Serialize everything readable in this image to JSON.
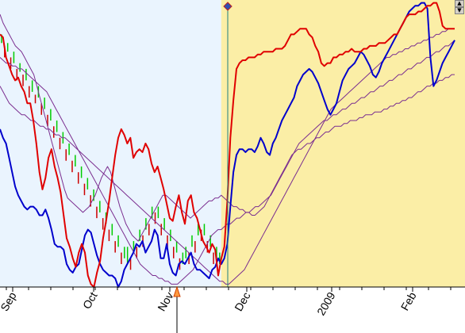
{
  "chart_data": {
    "type": "line",
    "title": "",
    "x_tick_labels": [
      "Sep",
      "Oct",
      "Nov",
      "Dec",
      "2009",
      "Feb"
    ],
    "ylim": [
      0,
      100
    ],
    "shaded_regions": [
      {
        "from": 0,
        "to": 72,
        "color": "#eaf4fe"
      },
      {
        "from": 72,
        "to": 149,
        "color": "#fbeea6"
      }
    ],
    "series": [
      {
        "color": "#e00000",
        "values": [
          88,
          87,
          80,
          77,
          74,
          72,
          73,
          70,
          68,
          64,
          64,
          58,
          50,
          40,
          34,
          38,
          45,
          48,
          42,
          38,
          33,
          25,
          17,
          14,
          10,
          7,
          12,
          15,
          12,
          4,
          1,
          0,
          5,
          9,
          17,
          23,
          30,
          38,
          46,
          52,
          55,
          53,
          50,
          52,
          45,
          47,
          48,
          47,
          50,
          48,
          43,
          40,
          42,
          38,
          34,
          29,
          24,
          23,
          28,
          32,
          26,
          22,
          30,
          32,
          26,
          24,
          20,
          16,
          14,
          12,
          15,
          13,
          4,
          10,
          14,
          30,
          52,
          65,
          76,
          78,
          79,
          79,
          80,
          80,
          80,
          81,
          81,
          82,
          82,
          82,
          82,
          83,
          83,
          83,
          84,
          86,
          88,
          88,
          89,
          90,
          90,
          90,
          88,
          87,
          84,
          82,
          78,
          77,
          78,
          78,
          80,
          80,
          81,
          81,
          82,
          82,
          83,
          82,
          82,
          82,
          83,
          83,
          84,
          84,
          84,
          85,
          85,
          85,
          86,
          87,
          88,
          88,
          90,
          92,
          94,
          95,
          95,
          95,
          96,
          96,
          97,
          98,
          98,
          99,
          99,
          96,
          91,
          90,
          90,
          90,
          90
        ]
      },
      {
        "color": "#0000cc",
        "values": [
          55,
          52,
          50,
          45,
          40,
          35,
          32,
          30,
          28,
          27,
          28,
          28,
          27,
          25,
          25,
          27,
          24,
          20,
          15,
          14,
          14,
          13,
          8,
          6,
          5,
          7,
          8,
          13,
          18,
          20,
          19,
          15,
          11,
          8,
          6,
          5,
          4,
          4,
          3,
          0,
          2,
          6,
          8,
          10,
          12,
          15,
          14,
          16,
          12,
          14,
          16,
          20,
          18,
          10,
          10,
          15,
          8,
          5,
          4,
          8,
          9,
          8,
          10,
          12,
          8,
          6,
          6,
          5,
          4,
          3,
          6,
          7,
          10,
          8,
          10,
          15,
          28,
          40,
          46,
          48,
          48,
          47,
          48,
          48,
          47,
          49,
          52,
          50,
          47,
          46,
          50,
          52,
          55,
          58,
          60,
          62,
          64,
          66,
          70,
          72,
          74,
          75,
          76,
          75,
          73,
          71,
          68,
          65,
          62,
          60,
          62,
          64,
          68,
          72,
          74,
          76,
          77,
          78,
          80,
          82,
          81,
          79,
          77,
          74,
          73,
          75,
          78,
          80,
          82,
          84,
          86,
          88,
          90,
          92,
          94,
          96,
          97,
          98,
          98,
          99,
          99,
          97,
          80,
          70,
          72,
          75,
          78,
          80,
          82,
          84,
          86
        ]
      },
      {
        "color": "#7b2e90",
        "values": [
          95,
          92,
          90,
          88,
          86,
          84,
          83,
          82,
          80,
          78,
          76,
          74,
          70,
          66,
          62,
          58,
          54,
          50,
          46,
          42,
          38,
          34,
          31,
          30,
          29,
          28,
          27,
          26,
          27,
          28,
          30,
          32,
          35,
          38,
          40,
          42,
          40,
          36,
          32,
          28,
          25,
          22,
          20,
          18,
          17,
          16,
          18,
          20,
          22,
          24,
          26,
          28,
          30,
          32,
          32,
          31,
          30,
          29,
          28,
          27,
          26,
          25,
          24,
          25,
          26,
          27,
          28,
          29,
          30,
          30,
          31,
          31,
          32,
          31,
          30,
          29,
          28,
          28,
          27,
          27,
          26,
          26,
          25,
          25,
          26,
          27,
          28,
          30,
          32,
          34,
          36,
          38,
          40,
          42,
          44,
          46,
          47,
          48,
          48,
          49,
          50,
          50,
          51,
          52,
          52,
          53,
          54,
          54,
          55,
          56,
          56,
          56,
          57,
          57,
          58,
          58,
          58,
          59,
          59,
          60,
          60,
          60,
          61,
          61,
          61,
          62,
          62,
          63,
          63,
          64,
          64,
          65,
          65,
          66,
          66,
          67,
          68,
          68,
          69,
          70,
          70,
          71,
          71,
          72,
          72,
          73,
          73,
          74,
          74
        ]
      },
      {
        "color": "#7b2e90",
        "values": [
          80,
          79,
          78,
          78,
          77,
          77,
          76,
          76,
          75,
          74,
          73,
          72,
          71,
          70,
          69,
          68,
          66,
          64,
          62,
          60,
          58,
          56,
          54,
          52,
          50,
          48,
          46,
          44,
          42,
          40,
          38,
          36,
          34,
          32,
          30,
          28,
          26,
          24,
          22,
          20,
          18,
          16,
          14,
          12,
          10,
          8,
          7,
          6,
          5,
          4,
          4,
          3,
          3,
          2,
          2,
          1,
          1,
          1,
          2,
          3,
          4,
          5,
          6,
          8,
          10,
          12,
          14,
          16,
          18,
          19,
          20,
          20,
          21,
          22,
          22,
          23,
          24,
          24,
          25,
          26,
          26,
          27,
          28,
          28,
          29,
          30,
          31,
          32,
          34,
          36,
          38,
          40,
          42,
          44,
          46,
          48,
          50,
          51,
          52,
          53,
          54,
          55,
          56,
          57,
          58,
          58,
          59,
          60,
          60,
          61,
          62,
          62,
          63,
          64,
          64,
          65,
          66,
          66,
          67,
          68,
          68,
          69,
          70,
          70,
          71,
          72,
          72,
          73,
          74,
          74,
          75,
          76,
          76,
          77,
          78,
          78,
          79,
          80,
          80,
          81,
          82,
          82,
          83,
          84,
          84,
          85,
          86
        ]
      },
      {
        "color": "#7b2e90",
        "values": [
          70,
          68,
          66,
          64,
          63,
          62,
          61,
          60,
          60,
          59,
          58,
          58,
          57,
          56,
          56,
          55,
          55,
          54,
          53,
          53,
          52,
          52,
          51,
          50,
          49,
          48,
          47,
          46,
          45,
          44,
          43,
          42,
          41,
          40,
          39,
          38,
          37,
          36,
          35,
          34,
          33,
          32,
          31,
          30,
          29,
          28,
          27,
          26,
          25,
          24,
          23,
          22,
          21,
          20,
          19,
          18,
          17,
          16,
          15,
          14,
          13,
          12,
          11,
          10,
          9,
          8,
          7,
          6,
          5,
          4,
          3,
          2,
          2,
          1,
          1,
          2,
          3,
          4,
          5,
          6,
          8,
          10,
          12,
          14,
          16,
          18,
          20,
          22,
          24,
          26,
          28,
          30,
          32,
          34,
          36,
          38,
          40,
          42,
          44,
          46,
          48,
          50,
          52,
          54,
          56,
          58,
          60,
          62,
          63,
          64,
          65,
          66,
          67,
          68,
          69,
          70,
          71,
          72,
          73,
          74,
          75,
          76,
          77,
          78,
          79,
          80,
          80,
          81,
          81,
          82,
          82,
          83,
          83,
          84,
          84,
          85,
          85,
          86,
          86,
          87,
          87,
          88,
          88,
          89,
          89,
          90,
          90,
          90
        ]
      }
    ],
    "candles": {
      "up_color": "#00cc00",
      "down_color": "#cc0000",
      "open": [
        85,
        84,
        82,
        80,
        78,
        76,
        75,
        74,
        72,
        70,
        68,
        67,
        66,
        64,
        62,
        60,
        58,
        56,
        54,
        52,
        50,
        48,
        46,
        44,
        42,
        40,
        38,
        36,
        34,
        32,
        30,
        28,
        26,
        24,
        22,
        20,
        18,
        16,
        14,
        12,
        10,
        8,
        10,
        12,
        14,
        16,
        18,
        20,
        22,
        24,
        26,
        24,
        22,
        20,
        18,
        16,
        14,
        12,
        10,
        8,
        10,
        12,
        14,
        16,
        18,
        20,
        18,
        16,
        14,
        12,
        10,
        8
      ],
      "close": [
        88,
        80,
        85,
        76,
        82,
        72,
        78,
        70,
        76,
        66,
        72,
        64,
        70,
        60,
        66,
        56,
        62,
        52,
        58,
        48,
        54,
        44,
        50,
        40,
        46,
        36,
        42,
        32,
        38,
        28,
        34,
        24,
        30,
        20,
        26,
        16,
        22,
        12,
        18,
        8,
        14,
        14,
        6,
        16,
        10,
        20,
        14,
        24,
        18,
        28,
        22,
        28,
        18,
        24,
        14,
        20,
        10,
        16,
        6,
        12,
        14,
        8,
        18,
        12,
        22,
        16,
        22,
        12,
        18,
        8,
        14,
        12
      ]
    }
  },
  "cursor": {
    "marker_color": "#e03030"
  },
  "scrollbar": {
    "up_glyph": "▲",
    "down_glyph": "▼"
  }
}
